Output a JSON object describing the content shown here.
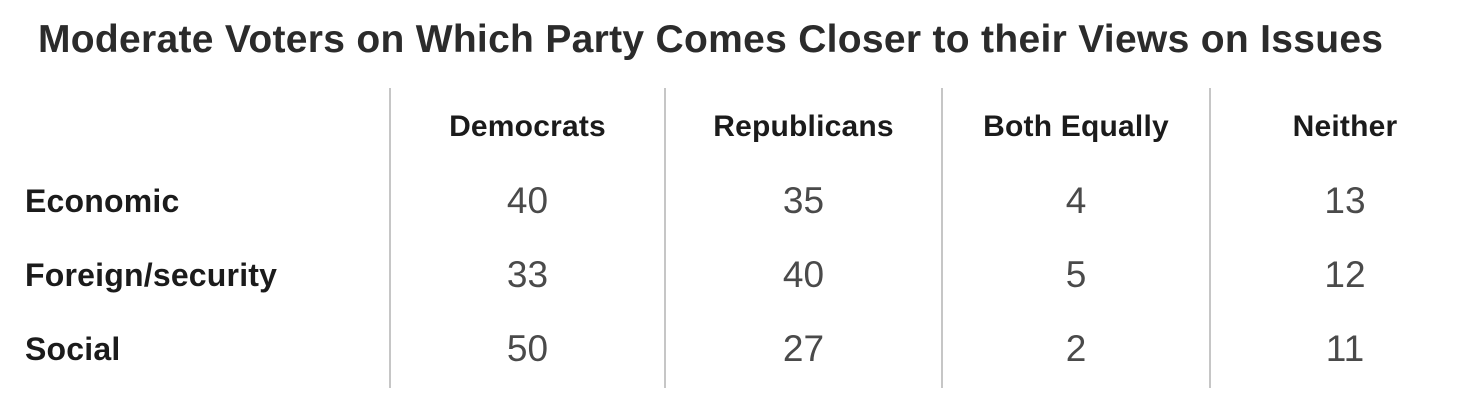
{
  "title": "Moderate Voters on Which Party Comes Closer to their Views on Issues",
  "chart_data": {
    "type": "table",
    "title": "Moderate Voters on Which Party Comes Closer to their Views on Issues",
    "columns": [
      "Democrats",
      "Republicans",
      "Both Equally",
      "Neither"
    ],
    "rows": [
      {
        "label": "Economic",
        "values": [
          "40",
          "35",
          "4",
          "13"
        ]
      },
      {
        "label": "Foreign/security",
        "values": [
          "33",
          "40",
          "5",
          "12"
        ]
      },
      {
        "label": "Social",
        "values": [
          "50",
          "27",
          "2",
          "11"
        ]
      }
    ]
  },
  "colors": {
    "background": "#ffffff",
    "title_text": "#2b2b2b",
    "header_text": "#1b1b1b",
    "value_text": "#4a4a4a",
    "divider": "#c6c6c6"
  }
}
